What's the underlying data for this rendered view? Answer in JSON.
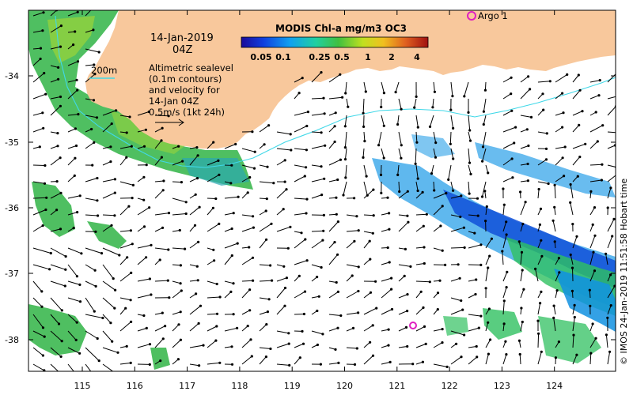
{
  "map": {
    "date_label": "14-Jan-2019",
    "time_label": "04Z",
    "colorbar_title": "MODIS Chl-a mg/m3 OC3",
    "colorbar_ticks": [
      "0.05",
      "0.1",
      "0.25",
      "0.5",
      "1",
      "2",
      "4"
    ],
    "colorbar_colors": [
      "#1a0a9a",
      "#1040e0",
      "#10a0f0",
      "#20d0a0",
      "#40c040",
      "#c0e020",
      "#f0c020",
      "#e06020",
      "#a01010"
    ],
    "contour_label": "200m",
    "description_lines": [
      "Altimetric sealevel",
      "(0.1m contours)",
      "and velocity for",
      "14-Jan 04Z"
    ],
    "velocity_scale_label": "0.5m/s (1kt 24h)",
    "argo_label": "Argo 1",
    "credit": "© IMOS 24-Jan-2019 11:51:58 Hobart time",
    "land_color": "#f8c89c",
    "argo_color": "#e020c0",
    "contour_color": "#40d8e8",
    "lat_labels": [
      "-34",
      "-35",
      "-36",
      "-37",
      "-38"
    ],
    "lon_labels": [
      "115",
      "116",
      "117",
      "118",
      "119",
      "120",
      "121",
      "122",
      "123",
      "124"
    ]
  }
}
